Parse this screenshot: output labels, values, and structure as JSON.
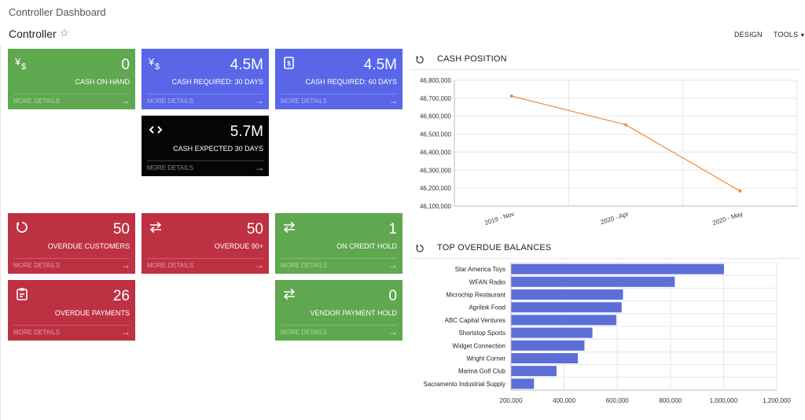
{
  "page": {
    "title": "Controller Dashboard"
  },
  "header": {
    "dashboard_name": "Controller",
    "favorite_icon": "star-outline-icon",
    "design_label": "DESIGN",
    "tools_label": "TOOLS"
  },
  "colors": {
    "green": "#5fa84f",
    "blue": "#5966e8",
    "black": "#050505",
    "red": "#be3143",
    "line": "#f08a3b",
    "bar": "#5b6fd6"
  },
  "tiles": [
    {
      "id": "cash-on-hand",
      "icon": "yen-dollar-icon",
      "value": "0",
      "label": "CASH ON-HAND",
      "more": "MORE DETAILS",
      "color": "green"
    },
    {
      "id": "cash-required-30",
      "icon": "yen-dollar-icon",
      "value": "4.5M",
      "label": "CASH REQUIRED: 30 DAYS",
      "more": "MORE DETAILS",
      "color": "blue"
    },
    {
      "id": "cash-required-60",
      "icon": "invoice-icon",
      "value": "4.5M",
      "label": "CASH REQUIRED: 60 DAYS",
      "more": "MORE DETAILS",
      "color": "blue"
    },
    {
      "id": "cash-expected-30",
      "icon": "code-brackets-icon",
      "value": "5.7M",
      "label": "CASH EXPECTED 30 DAYS",
      "more": "MORE DETAILS",
      "color": "black"
    },
    {
      "id": "overdue-customers",
      "icon": "refresh-icon",
      "value": "50",
      "label": "OVERDUE CUSTOMERS",
      "more": "MORE DETAILS",
      "color": "red"
    },
    {
      "id": "overdue-90",
      "icon": "transfer-icon",
      "value": "50",
      "label": "OVERDUE 90+",
      "more": "MORE DETAILS",
      "color": "red"
    },
    {
      "id": "on-credit-hold",
      "icon": "transfer-icon",
      "value": "1",
      "label": "ON CREDIT HOLD",
      "more": "MORE DETAILS",
      "color": "green"
    },
    {
      "id": "overdue-payments",
      "icon": "clipboard-icon",
      "value": "26",
      "label": "OVERDUE PAYMENTS",
      "more": "MORE DETAILS",
      "color": "red"
    },
    {
      "id": "vendor-payment-hold",
      "icon": "transfer-icon",
      "value": "0",
      "label": "VENDOR PAYMENT HOLD",
      "more": "MORE DETAILS",
      "color": "green"
    }
  ],
  "widgets": {
    "cash_position": {
      "title": "CASH POSITION",
      "icon": "refresh-icon"
    },
    "top_overdue": {
      "title": "TOP OVERDUE BALANCES",
      "icon": "refresh-icon"
    }
  },
  "chart_data": [
    {
      "type": "line",
      "x": [
        "2019 - Nov",
        "2020 - Apr",
        "2020 - May"
      ],
      "series": [
        {
          "values": [
            46712000,
            46552000,
            46184000
          ]
        }
      ],
      "ylim": [
        46100000,
        46800000
      ],
      "yticks": [
        "46,800,000",
        "46,700,000",
        "46,600,000",
        "46,500,000",
        "46,400,000",
        "46,300,000",
        "46,200,000",
        "46,100,000"
      ],
      "grid": true
    },
    {
      "type": "bar",
      "orientation": "horizontal",
      "categories": [
        "Star America Toys",
        "WFAN Radio",
        "Microchip Restaurant",
        "Agrilink Food",
        "ABC Capital Ventures",
        "Shortstop Sports",
        "Widget Connection",
        "Wright Corner",
        "Marina Golf Club",
        "Sacramento Industrial Supply"
      ],
      "values": [
        1000000,
        815000,
        620000,
        615000,
        595000,
        505000,
        475000,
        450000,
        370000,
        285000
      ],
      "xlim": [
        200000,
        1200000
      ],
      "xticks": [
        "200,000",
        "400,000",
        "600,000",
        "800,000",
        "1,000,000",
        "1,200,000"
      ],
      "grid": true
    }
  ]
}
